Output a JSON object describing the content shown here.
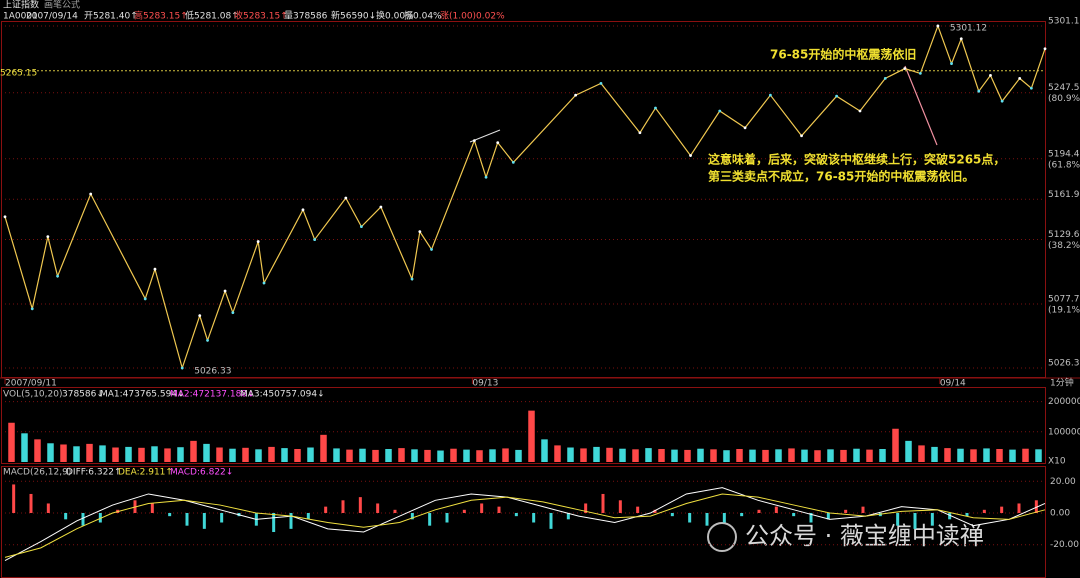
{
  "chart_data": [
    {
      "type": "line",
      "title": "上证指数",
      "subtitle": "画笔公式",
      "info": [
        "1A0001",
        "2007/09/14",
        "开5281.40↑",
        "高5283.15↑",
        "低5281.08↑",
        "收5283.15↑",
        "量378586",
        "新56590↓",
        "换0.00%",
        "振0.04%",
        "涨(1.00)0.02%"
      ],
      "x": [
        0,
        14,
        22,
        27,
        44,
        72,
        77,
        91,
        100,
        104,
        113,
        117,
        130,
        133,
        153,
        159,
        175,
        183,
        193,
        209,
        213,
        219,
        241,
        247,
        253,
        261,
        293,
        306,
        326,
        334,
        352,
        367,
        380,
        393,
        409,
        427,
        439,
        452,
        462,
        470,
        479,
        486,
        491,
        500,
        506,
        512,
        521,
        527,
        534
      ],
      "series": [
        {
          "color": "#f0c850",
          "values": [
            5147.8,
            5073.9,
            5131.9,
            5100.1,
            5166.1,
            5081.9,
            5105.7,
            5026.33,
            5068.4,
            5048.5,
            5088.2,
            5070.8,
            5127.9,
            5094.6,
            5153.4,
            5129.5,
            5162.9,
            5139.9,
            5155.7,
            5097.8,
            5135.9,
            5121.6,
            5209.0,
            5179.6,
            5207.4,
            5191.5,
            5245.5,
            5255.0,
            5215.3,
            5235.2,
            5197.0,
            5232.8,
            5219.3,
            5245.5,
            5212.9,
            5244.7,
            5232.8,
            5259.0,
            5266.9,
            5263.0,
            5301.12,
            5270.9,
            5290.8,
            5248.7,
            5261.4,
            5240.7,
            5259.0,
            5251.1,
            5282.8
          ]
        }
      ],
      "xlim": [
        0,
        534
      ],
      "xticks": [
        {
          "value": 0,
          "label": "2007/09/11"
        },
        {
          "value": 240,
          "label": "09/13"
        },
        {
          "value": 480,
          "label": "09/14"
        }
      ],
      "x_unit": "1分钟",
      "ylim": [
        5018.3,
        5304.3
      ],
      "yticks": [
        5026.3,
        5077.7,
        5129.6,
        5161.9,
        5194.4,
        5247.5,
        5301.1
      ],
      "ytick_notes": [
        null,
        "(19.1%)",
        "(38.2%)",
        null,
        "(61.8%)",
        "(80.9%)",
        null
      ],
      "grid": true,
      "reference_value": 5265.15,
      "peak_label": 5301.12,
      "low_label": 5026.33,
      "annotations": [
        "76-85开始的中枢震荡依旧",
        "这意味着，后来，突破该中枢继续上行，突破5265点，",
        "第三类卖点不成立，76-85开始的中枢震荡依旧。"
      ],
      "watermark": "公众号 · 薇宝缠中读禅"
    },
    {
      "type": "bar",
      "legend_items": [
        "VOL(5,10,20)",
        "378586↓",
        "MA1:473765.594↓",
        "MA2:472137.188↓",
        "MA3:450757.094↓"
      ],
      "values": [
        130000,
        95000,
        75000,
        62000,
        58000,
        52000,
        60000,
        55000,
        48000,
        50000,
        47000,
        52000,
        45000,
        49000,
        70000,
        60000,
        48000,
        44000,
        47000,
        42000,
        50000,
        46000,
        43000,
        48000,
        90000,
        45000,
        41000,
        44000,
        40000,
        43000,
        46000,
        42000,
        40000,
        38000,
        44000,
        41000,
        39000,
        42000,
        45000,
        40000,
        170000,
        75000,
        55000,
        48000,
        45000,
        50000,
        47000,
        44000,
        42000,
        46000,
        43000,
        41000,
        40000,
        44000,
        42000,
        39000,
        43000,
        41000,
        40000,
        42000,
        45000,
        41000,
        39000,
        42000,
        40000,
        44000,
        41000,
        43000,
        110000,
        70000,
        55000,
        50000,
        46000,
        44000,
        42000,
        45000,
        43000,
        41000,
        44000,
        42000
      ],
      "colors": [
        "#ff4848",
        "#40d8d8"
      ],
      "ylim": [
        0,
        245000
      ],
      "yticks": [
        100000,
        200000
      ],
      "scale_label": "X10"
    },
    {
      "type": "macd",
      "legend_items": [
        "MACD(26,12,9)",
        "DIFF:6.322↑",
        "DEA:2.911↑",
        "MACD:6.822↓"
      ],
      "values": [
        18,
        12,
        6,
        -4,
        -8,
        -6,
        2,
        8,
        6,
        -2,
        -8,
        -10,
        -6,
        -2,
        -8,
        -12,
        -10,
        -4,
        4,
        8,
        10,
        6,
        2,
        -4,
        -8,
        -6,
        2,
        6,
        4,
        -2,
        -6,
        -10,
        -4,
        6,
        12,
        8,
        4,
        2,
        -2,
        -6,
        -8,
        -6,
        -2,
        2,
        4,
        -2,
        -6,
        -4,
        2,
        4,
        -2,
        -8,
        -10,
        -8,
        -4,
        -2,
        2,
        4,
        6,
        8
      ],
      "colors": [
        "#ff4848",
        "#40d8d8"
      ],
      "series": [
        {
          "color": "#ffffff",
          "values": [
            -30,
            -18,
            -5,
            5,
            12,
            8,
            2,
            -4,
            -2,
            -10,
            -12,
            -2,
            8,
            12,
            10,
            4,
            -2,
            -6,
            0,
            12,
            16,
            8,
            2,
            -4,
            -2,
            4,
            2,
            -8,
            -4,
            6
          ]
        },
        {
          "color": "#f0e040",
          "values": [
            -28,
            -22,
            -10,
            0,
            6,
            8,
            5,
            0,
            -2,
            -6,
            -9,
            -6,
            2,
            8,
            10,
            7,
            2,
            -3,
            -2,
            6,
            12,
            10,
            5,
            0,
            -2,
            1,
            2,
            -3,
            -4,
            2
          ]
        }
      ],
      "ylim": [
        -41,
        29
      ],
      "yticks": [
        {
          "value": 20,
          "label": "20.00"
        },
        {
          "value": 0,
          "label": "0.00"
        },
        {
          "value": -20,
          "label": "-20.00"
        }
      ]
    }
  ]
}
